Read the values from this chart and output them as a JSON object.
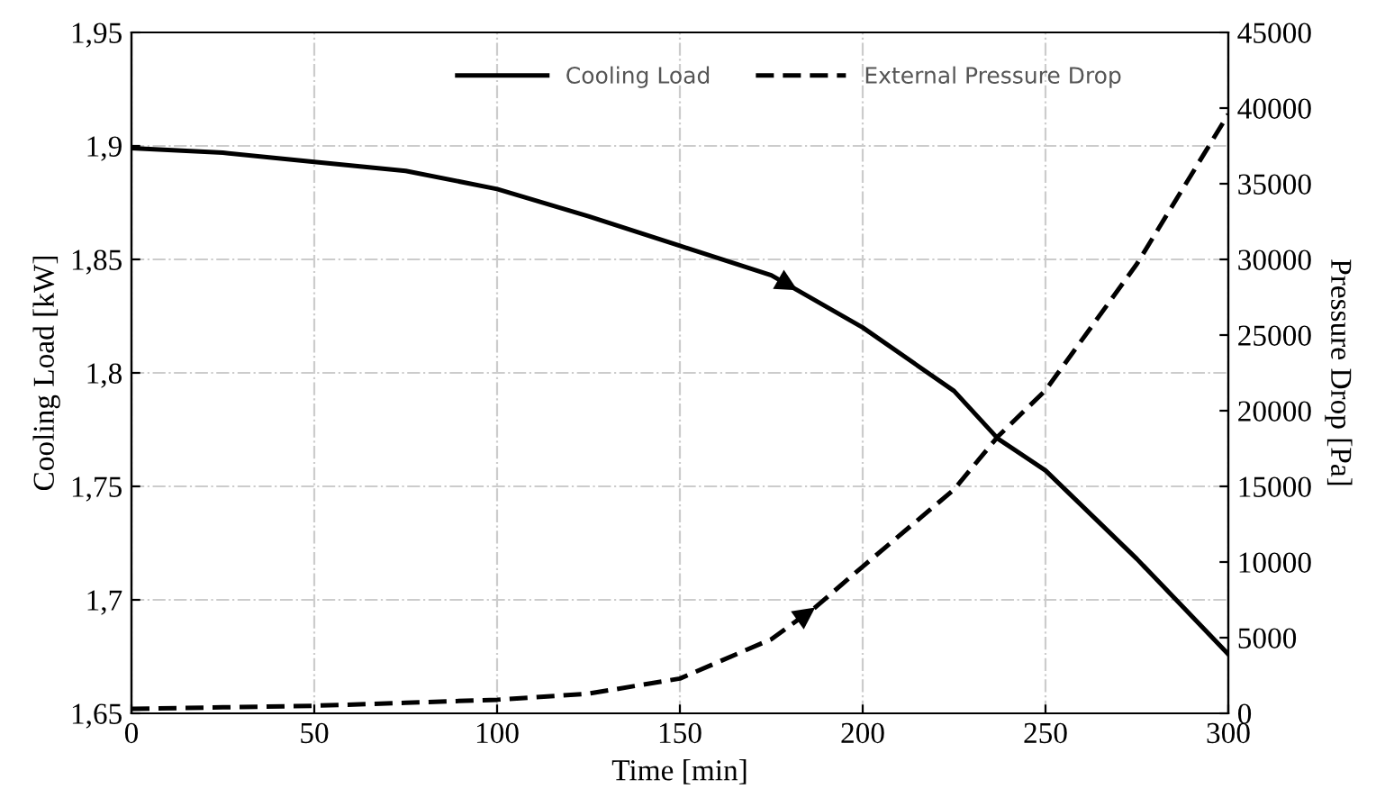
{
  "chart_data": {
    "type": "line",
    "xlabel": "Time [min]",
    "ylabel": "Cooling Load [kW]",
    "y2label": "Pressure Drop [Pa]",
    "series": [
      {
        "name": "Cooling Load",
        "color": "#000000",
        "line_style": "solid",
        "x": [
          0,
          25,
          50,
          75,
          100,
          125,
          150,
          175,
          200,
          225,
          237,
          250,
          275,
          300
        ],
        "values": [
          1.899,
          1.897,
          1.893,
          1.889,
          1.881,
          1.869,
          1.856,
          1.843,
          1.82,
          1.792,
          1.771,
          1.757,
          1.718,
          1.676
        ]
      },
      {
        "name": "External Pressure Drop",
        "color": "#000000",
        "line_style": "dashed",
        "axis": "y2",
        "x": [
          0,
          25,
          50,
          75,
          100,
          125,
          150,
          175,
          187,
          200,
          225,
          237,
          250,
          275,
          300
        ],
        "values": [
          300,
          400,
          500,
          700,
          900,
          1300,
          2300,
          4900,
          7000,
          9700,
          14800,
          18300,
          21350,
          29700,
          39600
        ]
      }
    ],
    "xlim": [
      0,
      300
    ],
    "xticks": [
      0,
      50,
      100,
      150,
      200,
      250,
      300
    ],
    "ylim": [
      1.65,
      1.95
    ],
    "yticks": [
      {
        "value": 1.65,
        "label": "1,65"
      },
      {
        "value": 1.7,
        "label": "1,7"
      },
      {
        "value": 1.75,
        "label": "1,75"
      },
      {
        "value": 1.8,
        "label": "1,8"
      },
      {
        "value": 1.85,
        "label": "1,85"
      },
      {
        "value": 1.9,
        "label": "1,9"
      },
      {
        "value": 1.95,
        "label": "1,95"
      }
    ],
    "y2lim": [
      0,
      45000
    ],
    "y2ticks": [
      0,
      5000,
      10000,
      15000,
      20000,
      25000,
      30000,
      35000,
      40000,
      45000
    ],
    "grid": true,
    "legend": "top",
    "marker": "none"
  }
}
